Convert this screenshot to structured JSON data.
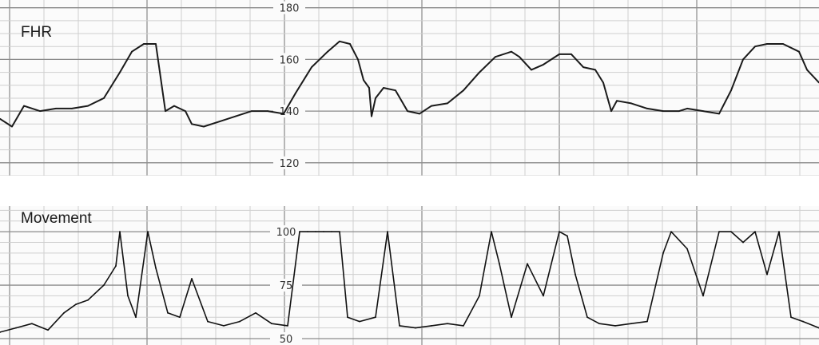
{
  "chart_data": [
    {
      "type": "line",
      "title": "FHR",
      "x": [
        0,
        15,
        30,
        50,
        70,
        90,
        110,
        130,
        150,
        165,
        180,
        195,
        207,
        218,
        225,
        232,
        240,
        255,
        275,
        295,
        315,
        335,
        355,
        370,
        390,
        410,
        425,
        438,
        448,
        455,
        462,
        465,
        470,
        480,
        495,
        510,
        525,
        540,
        560,
        580,
        600,
        620,
        640,
        650,
        665,
        680,
        700,
        715,
        730,
        745,
        755,
        765,
        772,
        790,
        810,
        830,
        850,
        860,
        880,
        900,
        915,
        930,
        945,
        960,
        980,
        1000,
        1010,
        1025
      ],
      "y": [
        137,
        134,
        142,
        140,
        141,
        141,
        142,
        145,
        155,
        163,
        166,
        166,
        140,
        142,
        141,
        140,
        135,
        134,
        136,
        138,
        140,
        140,
        139,
        147,
        157,
        163,
        167,
        166,
        160,
        152,
        149,
        138,
        145,
        149,
        148,
        140,
        139,
        142,
        143,
        148,
        155,
        161,
        163,
        161,
        156,
        158,
        162,
        162,
        157,
        156,
        151,
        140,
        144,
        143,
        141,
        140,
        140,
        141,
        140,
        139,
        148,
        160,
        165,
        166,
        166,
        163,
        156,
        151
      ],
      "xlim": [
        0,
        1025
      ],
      "ylim": [
        115,
        183
      ],
      "y_ticks": [
        "180",
        "160",
        "140",
        "120"
      ],
      "y_tick_values": [
        180,
        160,
        140,
        120
      ],
      "grid": true,
      "line_color": "#1a1a1a"
    },
    {
      "type": "line",
      "title": "Movement",
      "x": [
        0,
        20,
        40,
        60,
        80,
        95,
        110,
        130,
        145,
        150,
        160,
        170,
        185,
        195,
        210,
        225,
        240,
        260,
        280,
        300,
        320,
        340,
        360,
        375,
        385,
        395,
        405,
        415,
        425,
        435,
        450,
        470,
        485,
        500,
        520,
        540,
        560,
        580,
        600,
        615,
        625,
        640,
        660,
        680,
        700,
        710,
        720,
        735,
        750,
        770,
        790,
        810,
        830,
        840,
        860,
        880,
        900,
        915,
        930,
        945,
        960,
        975,
        990,
        1005,
        1025
      ],
      "y": [
        53,
        55,
        57,
        54,
        62,
        66,
        68,
        75,
        84,
        100,
        70,
        60,
        100,
        83,
        62,
        60,
        78,
        58,
        56,
        58,
        62,
        57,
        56,
        100,
        100,
        100,
        100,
        100,
        100,
        60,
        58,
        60,
        100,
        56,
        55,
        56,
        57,
        56,
        70,
        100,
        85,
        60,
        85,
        70,
        100,
        98,
        80,
        60,
        57,
        56,
        57,
        58,
        90,
        100,
        92,
        70,
        100,
        100,
        95,
        100,
        80,
        100,
        60,
        58,
        55
      ],
      "xlim": [
        0,
        1025
      ],
      "ylim": [
        47,
        112
      ],
      "y_ticks": [
        "100",
        "75",
        "50"
      ],
      "y_tick_values": [
        100,
        75,
        50
      ],
      "grid": true,
      "line_color": "#111111"
    }
  ]
}
